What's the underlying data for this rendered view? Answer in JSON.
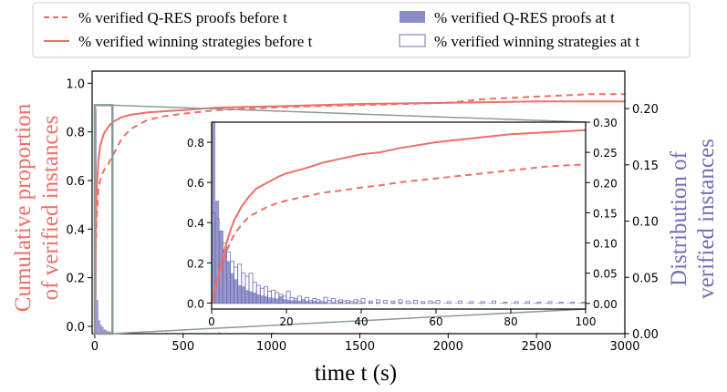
{
  "colors": {
    "red": "#ee6f68",
    "blue": "#6f6fb8",
    "blue_fill": "#8c8cc8",
    "gray": "#8a9a9a",
    "axis": "#000000"
  },
  "legend": {
    "items": [
      {
        "label": "% verified Q-RES proofs before t",
        "kind": "red-dashed"
      },
      {
        "label": "% verified winning strategies before t",
        "kind": "red-solid"
      },
      {
        "label": "% verified Q-RES proofs at t",
        "kind": "blue-filled"
      },
      {
        "label": "% verified winning strategies at t",
        "kind": "blue-outline"
      }
    ]
  },
  "chart_data": [
    {
      "id": "main",
      "type": "line",
      "xlabel": "time t (s)",
      "ylabel_left": "Cumulative proportion of verified instances",
      "ylabel_left_lines": [
        "Cumulative proportion",
        "of verified instances"
      ],
      "ylabel_right": "Distribution of verified instances",
      "ylabel_right_lines": [
        "Distribution of",
        "verified instances"
      ],
      "xlim": [
        -15,
        3000
      ],
      "ylim": [
        -0.03,
        1.05
      ],
      "ylim_right": [
        0,
        0.2333
      ],
      "xticks": [
        0,
        500,
        1000,
        1500,
        2000,
        2500,
        3000
      ],
      "xtick_labels": [
        "0",
        "500",
        "1000",
        "1500",
        "2000",
        "2500",
        "3000"
      ],
      "yticks": [
        0.0,
        0.2,
        0.4,
        0.6,
        0.8,
        1.0
      ],
      "ytick_labels": [
        "0.0",
        "0.2",
        "0.4",
        "0.6",
        "0.8",
        "1.0"
      ],
      "yticks_right": [
        0.0,
        0.05,
        0.1,
        0.15,
        0.2
      ],
      "ytick_right_labels": [
        "0.00",
        "0.05",
        "0.10",
        "0.15",
        "0.20"
      ],
      "zoom_box": {
        "x": [
          0,
          100
        ],
        "y": [
          -0.03,
          0.91
        ]
      },
      "series": [
        {
          "name": "% verified winning strategies before t",
          "style": "solid",
          "x": [
            0,
            5,
            10,
            20,
            30,
            50,
            70,
            100,
            150,
            200,
            300,
            400,
            500,
            700,
            1000,
            1500,
            2000,
            2500,
            3000
          ],
          "y": [
            0.0,
            0.35,
            0.55,
            0.68,
            0.74,
            0.79,
            0.815,
            0.84,
            0.86,
            0.87,
            0.88,
            0.885,
            0.89,
            0.9,
            0.905,
            0.915,
            0.92,
            0.925,
            0.925
          ]
        },
        {
          "name": "% verified Q-RES proofs before t",
          "style": "dashed",
          "x": [
            0,
            5,
            10,
            20,
            30,
            50,
            70,
            100,
            150,
            200,
            300,
            400,
            500,
            700,
            1000,
            1200,
            1500,
            2000,
            2200,
            2500,
            2800,
            3000
          ],
          "y": [
            0.0,
            0.3,
            0.43,
            0.56,
            0.6,
            0.64,
            0.66,
            0.7,
            0.77,
            0.81,
            0.85,
            0.865,
            0.875,
            0.89,
            0.9,
            0.905,
            0.91,
            0.92,
            0.935,
            0.945,
            0.955,
            0.955
          ]
        },
        {
          "name": "% verified Q-RES proofs at t",
          "style": "hist-filled",
          "bin_width": 10,
          "x": [
            0,
            10,
            20,
            30,
            40,
            50,
            60,
            70,
            80,
            90,
            100,
            200,
            400,
            700,
            1000,
            1500,
            2000,
            2500
          ],
          "y": [
            0.2,
            0.03,
            0.012,
            0.008,
            0.006,
            0.004,
            0.003,
            0.002,
            0.002,
            0.001,
            0.001,
            0.001,
            0.001,
            0.001,
            0.001,
            0.001,
            0.001,
            0.001
          ]
        }
      ]
    },
    {
      "id": "inset",
      "type": "line",
      "xlim": [
        0,
        100
      ],
      "ylim": [
        -0.03,
        0.9
      ],
      "ylim_right": [
        -0.00935,
        0.3
      ],
      "xticks": [
        0,
        20,
        40,
        60,
        80,
        100
      ],
      "xtick_labels": [
        "0",
        "20",
        "40",
        "60",
        "80",
        "100"
      ],
      "yticks": [
        0.0,
        0.2,
        0.4,
        0.6,
        0.8
      ],
      "ytick_labels": [
        "0.0",
        "0.2",
        "0.4",
        "0.6",
        "0.8"
      ],
      "yticks_right": [
        0.0,
        0.05,
        0.1,
        0.15,
        0.2,
        0.25,
        0.3
      ],
      "ytick_right_labels": [
        "0.00",
        "0.05",
        "0.10",
        "0.15",
        "0.20",
        "0.25",
        "0.30"
      ],
      "series": [
        {
          "name": "% verified winning strategies before t",
          "style": "solid",
          "x": [
            0,
            1,
            2,
            3,
            4,
            5,
            6,
            8,
            10,
            12,
            15,
            18,
            20,
            25,
            30,
            35,
            40,
            45,
            50,
            55,
            60,
            65,
            70,
            75,
            80,
            85,
            90,
            95,
            100
          ],
          "y": [
            0.0,
            0.07,
            0.15,
            0.23,
            0.3,
            0.36,
            0.41,
            0.48,
            0.53,
            0.57,
            0.6,
            0.63,
            0.645,
            0.67,
            0.7,
            0.72,
            0.74,
            0.75,
            0.77,
            0.785,
            0.8,
            0.81,
            0.82,
            0.83,
            0.84,
            0.845,
            0.85,
            0.855,
            0.86
          ]
        },
        {
          "name": "% verified Q-RES proofs before t",
          "style": "dashed",
          "x": [
            0,
            1,
            2,
            3,
            4,
            5,
            6,
            8,
            10,
            12,
            15,
            18,
            20,
            25,
            30,
            35,
            40,
            45,
            50,
            55,
            60,
            65,
            70,
            75,
            80,
            85,
            90,
            95,
            100
          ],
          "y": [
            0.0,
            0.06,
            0.13,
            0.2,
            0.26,
            0.3,
            0.34,
            0.39,
            0.43,
            0.45,
            0.48,
            0.5,
            0.51,
            0.53,
            0.55,
            0.56,
            0.575,
            0.585,
            0.6,
            0.61,
            0.62,
            0.63,
            0.64,
            0.65,
            0.66,
            0.67,
            0.68,
            0.685,
            0.69
          ]
        },
        {
          "name": "% verified Q-RES proofs at t",
          "style": "hist-filled",
          "bin_width": 1,
          "x": [
            0,
            1,
            2,
            3,
            4,
            5,
            6,
            7,
            8,
            9,
            10,
            11,
            12,
            13,
            14,
            15,
            16,
            17,
            18,
            19,
            20,
            21,
            22,
            23,
            24,
            25,
            26,
            27,
            28,
            29,
            30,
            32,
            34,
            36,
            38,
            40,
            42,
            44,
            46,
            48,
            50,
            53,
            56,
            59,
            62,
            65,
            68,
            71,
            74,
            77,
            80,
            83,
            86,
            89,
            92,
            95,
            98
          ],
          "y": [
            0.3,
            0.17,
            0.12,
            0.09,
            0.07,
            0.05,
            0.04,
            0.03,
            0.028,
            0.022,
            0.02,
            0.018,
            0.015,
            0.013,
            0.012,
            0.01,
            0.009,
            0.008,
            0.012,
            0.007,
            0.006,
            0.005,
            0.006,
            0.004,
            0.005,
            0.004,
            0.003,
            0.004,
            0.003,
            0.002,
            0.003,
            0.002,
            0.003,
            0.002,
            0.002,
            0.002,
            0.002,
            0.002,
            0.001,
            0.002,
            0.002,
            0.001,
            0.001,
            0.002,
            0.001,
            0.001,
            0.001,
            0.001,
            0.001,
            0.001,
            0.001,
            0.001,
            0.001,
            0.001,
            0.001,
            0.001,
            0.001
          ]
        },
        {
          "name": "% verified winning strategies at t",
          "style": "hist-outline",
          "bin_width": 1,
          "x": [
            0,
            1,
            2,
            3,
            4,
            5,
            6,
            7,
            8,
            9,
            10,
            11,
            12,
            13,
            14,
            15,
            16,
            17,
            18,
            19,
            20,
            21,
            22,
            23,
            24,
            25,
            26,
            27,
            28,
            29,
            30,
            31,
            32,
            33,
            34,
            35,
            36,
            37,
            38,
            39,
            40,
            42,
            44,
            46,
            48,
            50,
            52,
            54,
            56,
            58,
            60,
            63,
            66,
            69,
            72,
            75,
            78,
            81,
            84,
            87,
            90,
            93,
            96,
            99
          ],
          "y": [
            0.15,
            0.14,
            0.12,
            0.1,
            0.085,
            0.07,
            0.06,
            0.065,
            0.05,
            0.045,
            0.05,
            0.035,
            0.03,
            0.025,
            0.028,
            0.02,
            0.022,
            0.018,
            0.015,
            0.012,
            0.02,
            0.01,
            0.008,
            0.012,
            0.006,
            0.01,
            0.005,
            0.008,
            0.006,
            0.004,
            0.01,
            0.005,
            0.008,
            0.004,
            0.006,
            0.004,
            0.005,
            0.003,
            0.006,
            0.004,
            0.008,
            0.004,
            0.006,
            0.005,
            0.004,
            0.006,
            0.004,
            0.005,
            0.003,
            0.004,
            0.005,
            0.003,
            0.004,
            0.003,
            0.003,
            0.004,
            0.002,
            0.003,
            0.003,
            0.002,
            0.003,
            0.002,
            0.002,
            0.002
          ]
        }
      ]
    }
  ]
}
